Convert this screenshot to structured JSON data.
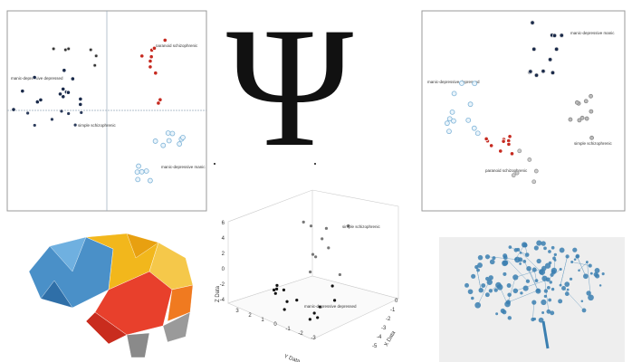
{
  "left_scatter": {
    "labels": [
      "manic-depressive depressed",
      "simple schizophrenic",
      "paranoid schizophrenic",
      "manic-depressive manic"
    ]
  },
  "symbol": "Ψ",
  "right_scatter": {
    "labels": [
      "manic-depressive depressed",
      "manic-depressive manic",
      "simple schizophrenic",
      "paranoid schizophrenic"
    ]
  },
  "scatter_3d": {
    "z_axis": "Z Data",
    "y_axis": "Y Data",
    "x_axis": "X Data",
    "z_ticks": [
      "6",
      "4",
      "2",
      "0",
      "-2",
      "-4"
    ],
    "y_ticks": [
      "3",
      "2",
      "1",
      "0",
      "-1",
      "-2",
      "-3"
    ],
    "x_ticks": [
      "0",
      "-1",
      "-2",
      "-3",
      "-4",
      "-5"
    ],
    "labels": [
      "simple schizophrenic",
      "manic-depressive depressed"
    ]
  }
}
